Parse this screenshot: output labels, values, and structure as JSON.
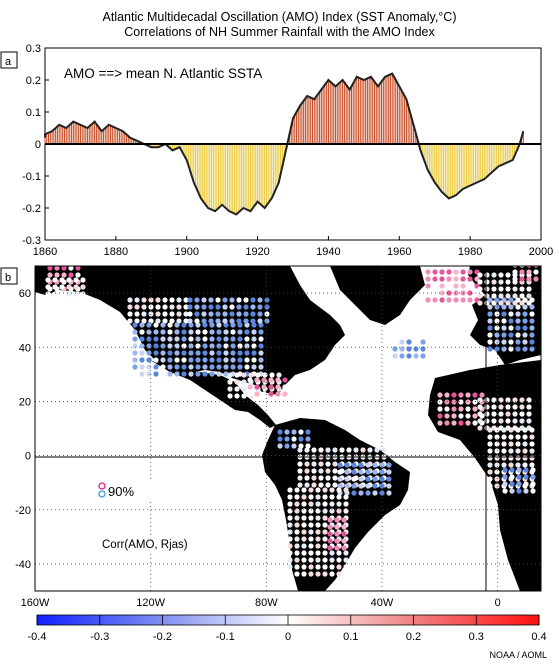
{
  "title_line1": "Atlantic Multidecadal Oscillation (AMO) Index (SST Anomaly,°C)",
  "title_line2": "Correlations of NH Summer Rainfall with the AMO Index",
  "credit": "NOAA / AOML",
  "chart_data": [
    {
      "panel": "a",
      "type": "area",
      "annotation": "AMO ==> mean N. Atlantic SSTA",
      "xlim": [
        1860,
        2000
      ],
      "ylim": [
        -0.3,
        0.3
      ],
      "xticks": [
        "1860",
        "1880",
        "1900",
        "1920",
        "1940",
        "1960",
        "1980",
        "2000"
      ],
      "yticks": [
        "0.3",
        "0.2",
        "0.1",
        "0",
        "-0.1",
        "-0.2",
        "-0.3"
      ],
      "positive_color": "#c8502a",
      "negative_color": "#e8c83c",
      "x": [
        1856,
        1860,
        1862,
        1864,
        1866,
        1868,
        1870,
        1872,
        1874,
        1876,
        1878,
        1880,
        1882,
        1884,
        1886,
        1888,
        1890,
        1892,
        1894,
        1896,
        1898,
        1900,
        1902,
        1904,
        1906,
        1908,
        1910,
        1912,
        1914,
        1916,
        1918,
        1920,
        1922,
        1924,
        1926,
        1928,
        1930,
        1932,
        1934,
        1936,
        1938,
        1940,
        1942,
        1944,
        1946,
        1948,
        1950,
        1952,
        1954,
        1956,
        1958,
        1960,
        1962,
        1964,
        1966,
        1968,
        1970,
        1972,
        1974,
        1976,
        1978,
        1980,
        1982,
        1984,
        1986,
        1988,
        1990,
        1992,
        1994,
        1995
      ],
      "y": [
        0.02,
        0.03,
        0.04,
        0.06,
        0.05,
        0.07,
        0.06,
        0.05,
        0.07,
        0.04,
        0.06,
        0.05,
        0.04,
        0.02,
        0.01,
        0.0,
        -0.01,
        -0.01,
        0.0,
        -0.02,
        -0.01,
        -0.05,
        -0.12,
        -0.17,
        -0.2,
        -0.21,
        -0.19,
        -0.21,
        -0.22,
        -0.2,
        -0.21,
        -0.18,
        -0.2,
        -0.17,
        -0.12,
        -0.02,
        0.08,
        0.12,
        0.15,
        0.14,
        0.17,
        0.2,
        0.18,
        0.2,
        0.17,
        0.21,
        0.2,
        0.21,
        0.18,
        0.21,
        0.22,
        0.18,
        0.14,
        0.06,
        -0.02,
        -0.08,
        -0.12,
        -0.15,
        -0.17,
        -0.16,
        -0.14,
        -0.13,
        -0.12,
        -0.11,
        -0.09,
        -0.07,
        -0.06,
        -0.05,
        0.0,
        0.04
      ]
    },
    {
      "panel": "b",
      "type": "map",
      "annotation_signif": "90%",
      "annotation_label": "Corr(AMO, Rjas)",
      "lon_range": [
        -160,
        15
      ],
      "lat_range": [
        -50,
        70
      ],
      "lon_ticks": [
        "160W",
        "120W",
        "80W",
        "40W",
        "0"
      ],
      "lat_ticks": [
        "60",
        "40",
        "20",
        "0",
        "-20",
        "-40"
      ],
      "colorbar_range": [
        -0.4,
        0.4
      ],
      "colorbar_ticks": [
        "-0.4",
        "-0.3",
        "-0.2",
        "-0.1",
        "0",
        "0.1",
        "0.2",
        "0.3",
        "0.4"
      ]
    }
  ]
}
